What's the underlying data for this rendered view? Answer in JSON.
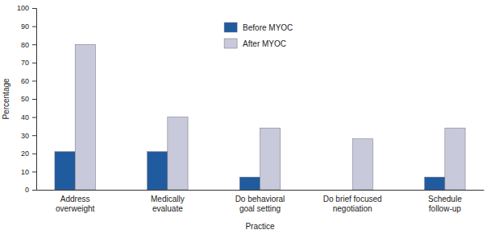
{
  "chart_data": {
    "type": "bar",
    "categories": [
      "Address overweight",
      "Medically evaluate",
      "Do behavioral goal setting",
      "Do brief focused negotiation",
      "Schedule follow-up"
    ],
    "series": [
      {
        "name": "Before MYOC",
        "color": "#1f5b9e",
        "values": [
          21,
          21,
          7,
          0,
          7
        ]
      },
      {
        "name": "After MYOC",
        "color": "#c8c9da",
        "values": [
          80,
          40,
          34,
          28,
          34
        ]
      }
    ],
    "x_label": "Practice",
    "y_label": "Percentage",
    "ylim": [
      0,
      100
    ],
    "yticks": [
      0,
      10,
      20,
      30,
      40,
      50,
      60,
      70,
      80,
      90,
      100
    ],
    "grid": false,
    "legend": "top"
  }
}
